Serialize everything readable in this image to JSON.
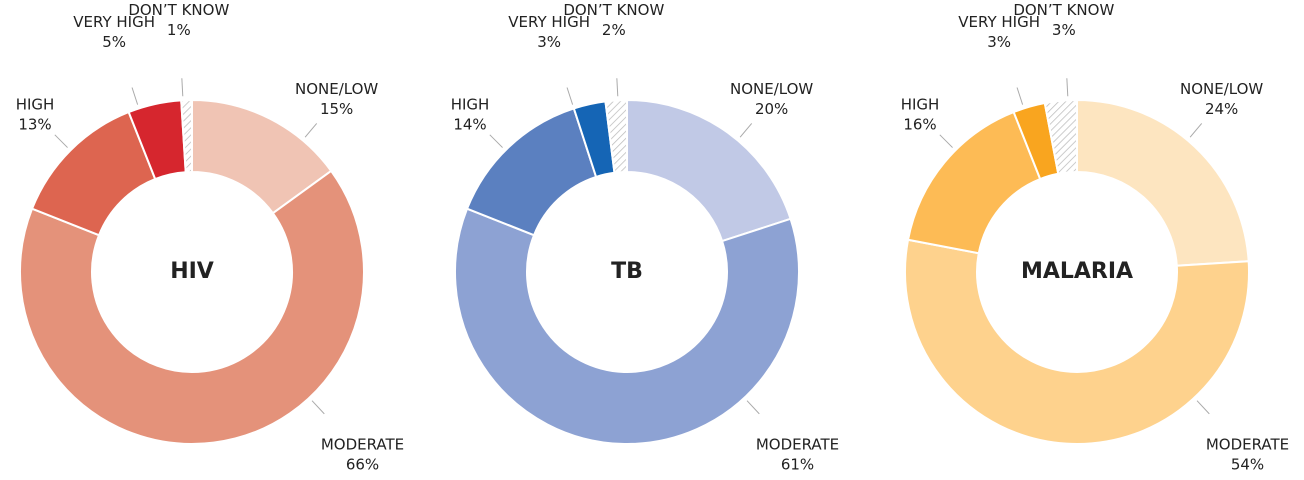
{
  "chart_data": [
    {
      "type": "donut",
      "title": "HIV",
      "categories": [
        "NONE/LOW",
        "MODERATE",
        "HIGH",
        "VERY HIGH",
        "DON’T KNOW"
      ],
      "values": [
        15,
        66,
        13,
        5,
        1
      ],
      "value_labels": [
        "15%",
        "66%",
        "13%",
        "5%",
        "1%"
      ],
      "colors": [
        "#f0c4b4",
        "#e4927a",
        "#dd6550",
        "#d6262e",
        "#bbbbbb"
      ]
    },
    {
      "type": "donut",
      "title": "TB",
      "categories": [
        "NONE/LOW",
        "MODERATE",
        "HIGH",
        "VERY HIGH",
        "DON’T KNOW"
      ],
      "values": [
        20,
        61,
        14,
        3,
        2
      ],
      "value_labels": [
        "20%",
        "61%",
        "14%",
        "3%",
        "2%"
      ],
      "colors": [
        "#c1c9e6",
        "#8da2d3",
        "#5b80c0",
        "#1565b5",
        "#bbbbbb"
      ]
    },
    {
      "type": "donut",
      "title": "MALARIA",
      "categories": [
        "NONE/LOW",
        "MODERATE",
        "HIGH",
        "VERY HIGH",
        "DON’T KNOW"
      ],
      "values": [
        24,
        54,
        16,
        3,
        3
      ],
      "value_labels": [
        "24%",
        "54%",
        "16%",
        "3%",
        "3%"
      ],
      "colors": [
        "#fde5c0",
        "#fed28d",
        "#fdbb55",
        "#f9a51f",
        "#bbbbbb"
      ]
    }
  ]
}
